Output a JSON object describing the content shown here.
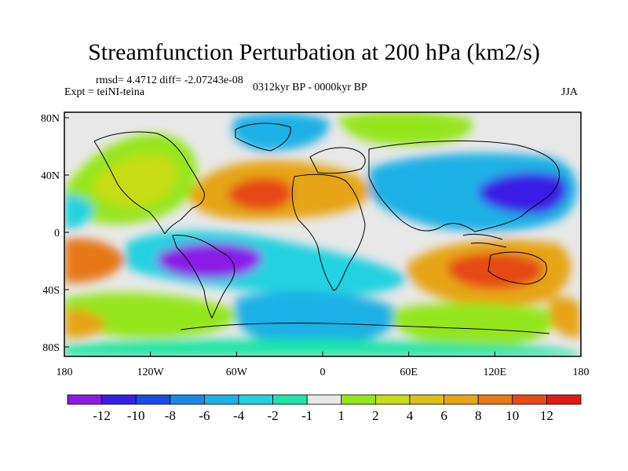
{
  "title": "Streamfunction Perturbation at 200 hPa (km2/s)",
  "stats": "rmsd= 4.4712 diff= -2.07243e-08",
  "experiment": "Expt = teiNI-teina",
  "period": "0312kyr BP - 0000kyr BP",
  "season": "JJA",
  "map": {
    "y_ticks": [
      "80N",
      "40N",
      "0",
      "40S",
      "80S"
    ],
    "x_ticks": [
      "180",
      "120W",
      "60W",
      "0",
      "60E",
      "120E",
      "180"
    ],
    "background_color": "#e8e8e8"
  },
  "colorbar": {
    "colors": [
      "#8a1ae6",
      "#3a1ee6",
      "#1a4be6",
      "#1b86e6",
      "#1fb1e6",
      "#20d2e0",
      "#1ee6a6",
      "#e8e8e8",
      "#94e61a",
      "#c6dc16",
      "#ddc016",
      "#e6a516",
      "#e67816",
      "#e64a16",
      "#e61616"
    ],
    "labels": [
      "-12",
      "-10",
      "-8",
      "-6",
      "-4",
      "-2",
      "-1",
      "1",
      "2",
      "4",
      "6",
      "8",
      "10",
      "12"
    ]
  }
}
